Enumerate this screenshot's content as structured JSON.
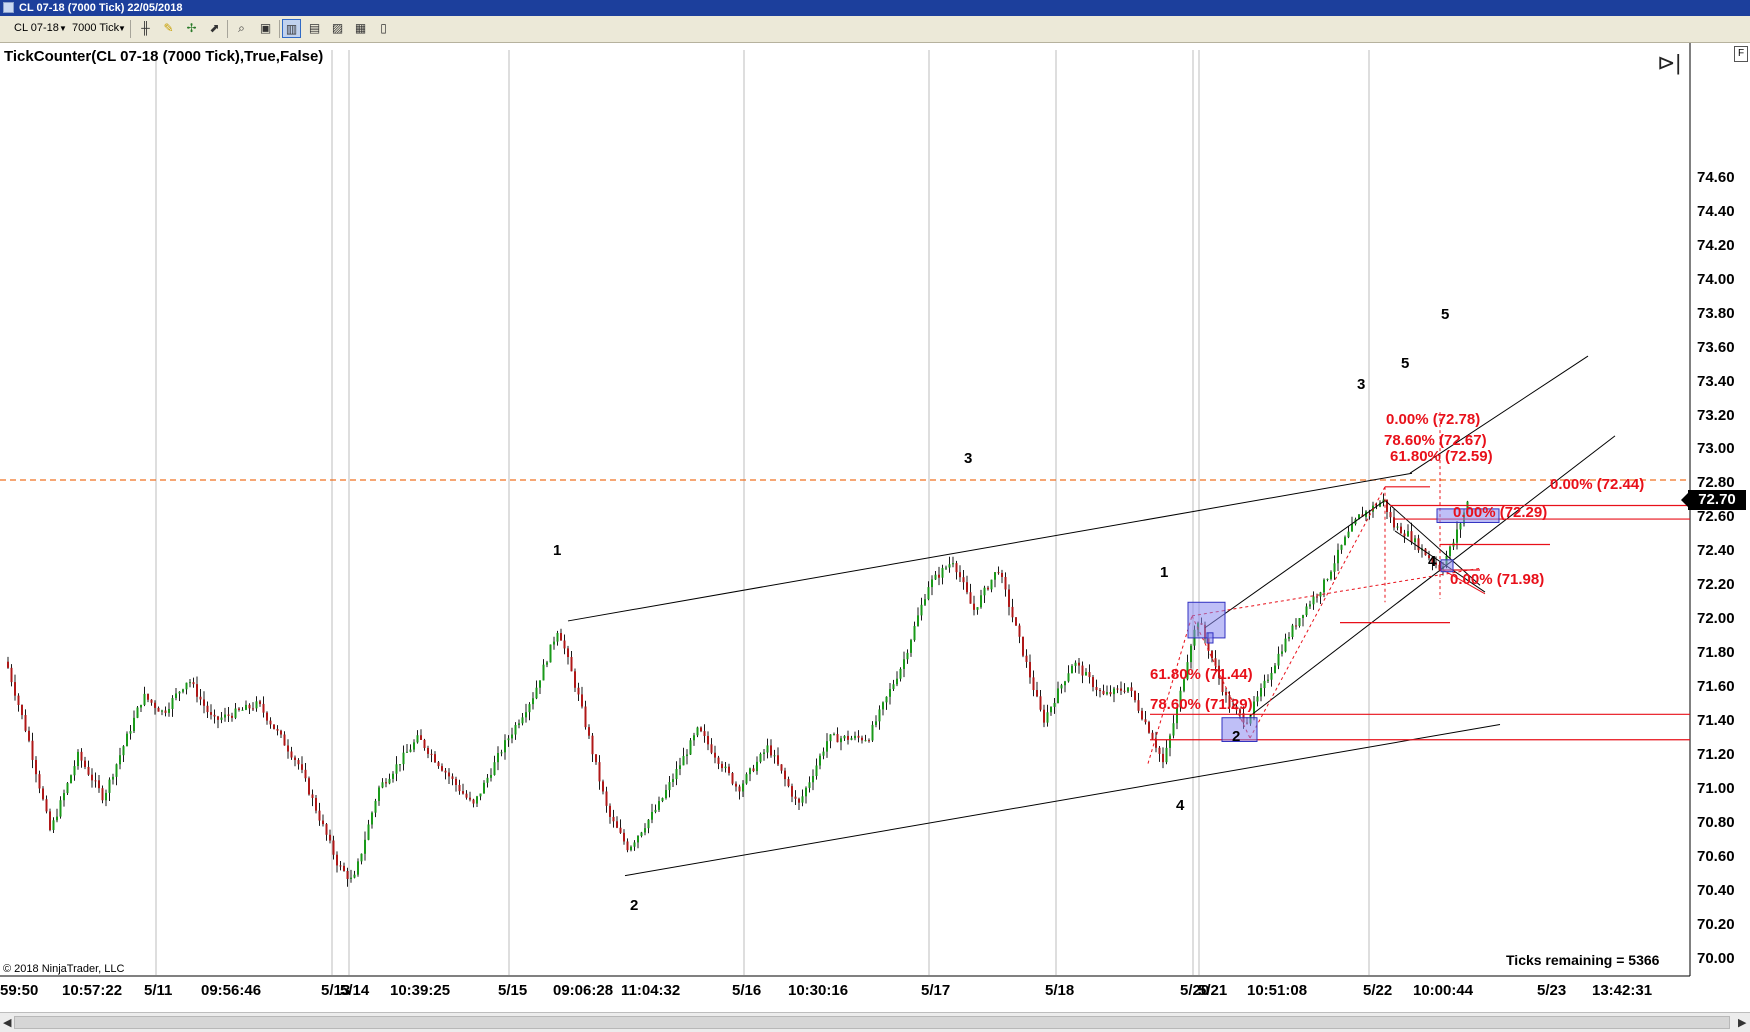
{
  "window": {
    "title": "CL 07-18 (7000 Tick)  22/05/2018"
  },
  "toolbar": {
    "instrument": "CL 07-18",
    "interval": "7000 Tick"
  },
  "indicator": {
    "label": "TickCounter(CL 07-18 (7000 Tick),True,False)"
  },
  "price_axis": {
    "labels": [
      "74.60",
      "74.40",
      "74.20",
      "74.00",
      "73.80",
      "73.60",
      "73.40",
      "73.20",
      "73.00",
      "72.80",
      "72.60",
      "72.40",
      "72.20",
      "72.00",
      "71.80",
      "71.60",
      "71.40",
      "71.20",
      "71.00",
      "70.80",
      "70.60",
      "70.40",
      "70.20",
      "70.00"
    ],
    "last_price": "72.70"
  },
  "time_axis": {
    "labels": [
      "59:50",
      "10:57:22",
      "5/11",
      "09:56:46",
      "5/13",
      "5/14",
      "10:39:25",
      "5/15",
      "09:06:28",
      "11:04:32",
      "5/16",
      "10:30:16",
      "5/17",
      "5/18",
      "5/20",
      "5/21",
      "10:51:08",
      "5/22",
      "10:00:44",
      "5/23",
      "13:42:31"
    ]
  },
  "wave_labels": [
    "1",
    "2",
    "3",
    "4",
    "1",
    "2",
    "3",
    "4",
    "5",
    "5"
  ],
  "fib_labels": [
    "0.00% (72.78)",
    "78.60% (72.67)",
    "61.80% (72.59)",
    "0.00% (72.44)",
    "0.00% (72.29)",
    "0.00% (71.98)",
    "61.80% (71.44)",
    "78.60% (71.29)"
  ],
  "footer": {
    "copyright": "© 2018 NinjaTrader, LLC",
    "ticks_remaining": "Ticks remaining = 5366"
  },
  "icons": [
    "window-icon",
    "dropdown-arrow-icon",
    "pencil-icon",
    "crosshair-icon",
    "pointer-icon",
    "zoom-icon",
    "bar-style-icon",
    "candle-style-icon",
    "data-box-icon",
    "properties-icon",
    "scroll-end-icon"
  ],
  "colors": {
    "up": "#1a9a1a",
    "down": "#b01818",
    "fib": "#e8101a",
    "current_price_line": "#f07020",
    "zone": "#7777ee"
  }
}
